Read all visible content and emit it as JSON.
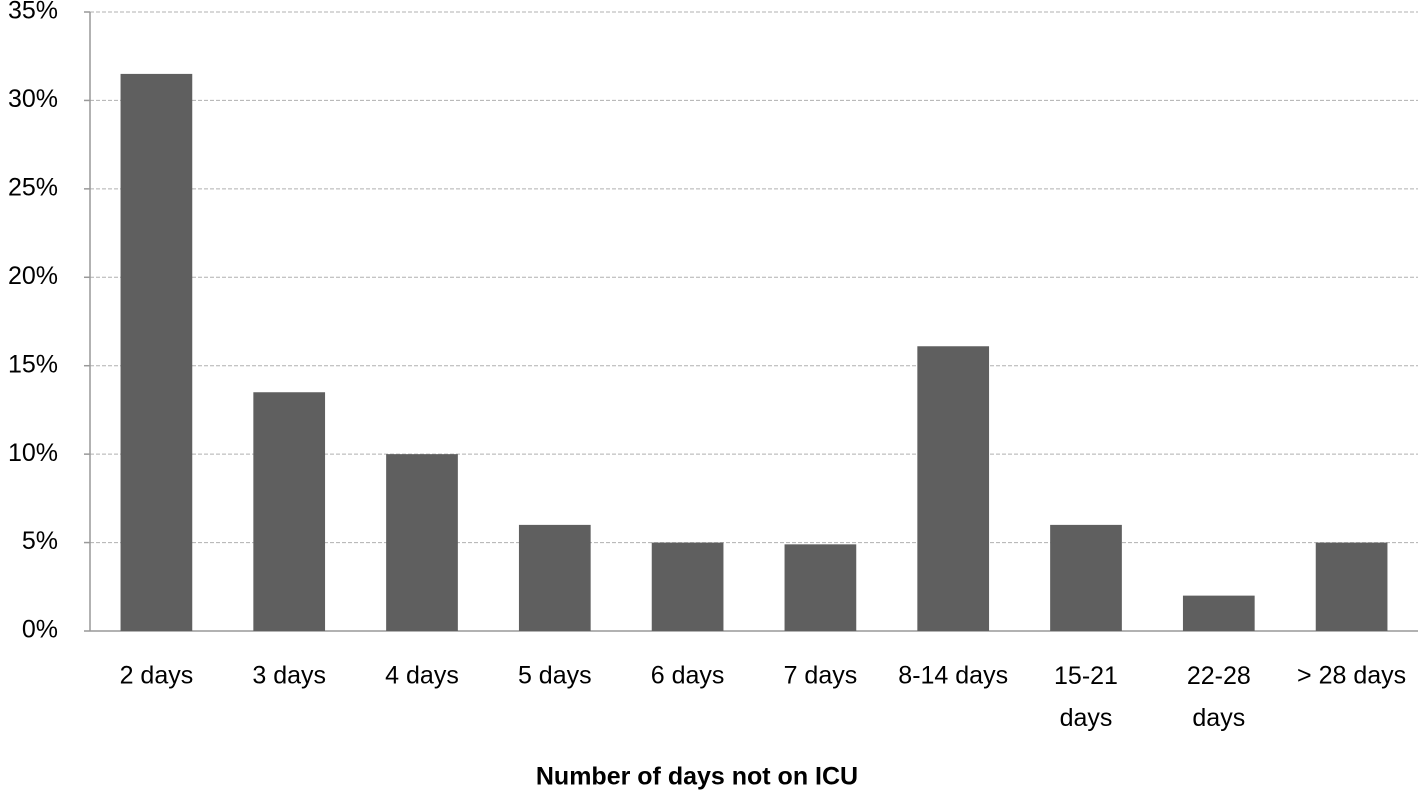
{
  "chart_data": {
    "type": "bar",
    "x_label": "Number of days not on ICU",
    "categories": [
      "2 days",
      "3 days",
      "4 days",
      "5 days",
      "6 days",
      "7 days",
      "8-14 days",
      "15-21 days",
      "22-28 days",
      "> 28 days"
    ],
    "values": [
      31.5,
      13.5,
      10,
      6,
      5,
      4.9,
      16.1,
      6,
      2,
      5
    ],
    "color": "#5f5f5f",
    "ylim": [
      0,
      35
    ],
    "yticks": [
      {
        "value": 0,
        "label": "0%"
      },
      {
        "value": 5,
        "label": "5%"
      },
      {
        "value": 10,
        "label": "10%"
      },
      {
        "value": 15,
        "label": "15%"
      },
      {
        "value": 20,
        "label": "20%"
      },
      {
        "value": 25,
        "label": "25%"
      },
      {
        "value": 30,
        "label": "30%"
      },
      {
        "value": 35,
        "label": "35%"
      }
    ],
    "grid": true
  }
}
